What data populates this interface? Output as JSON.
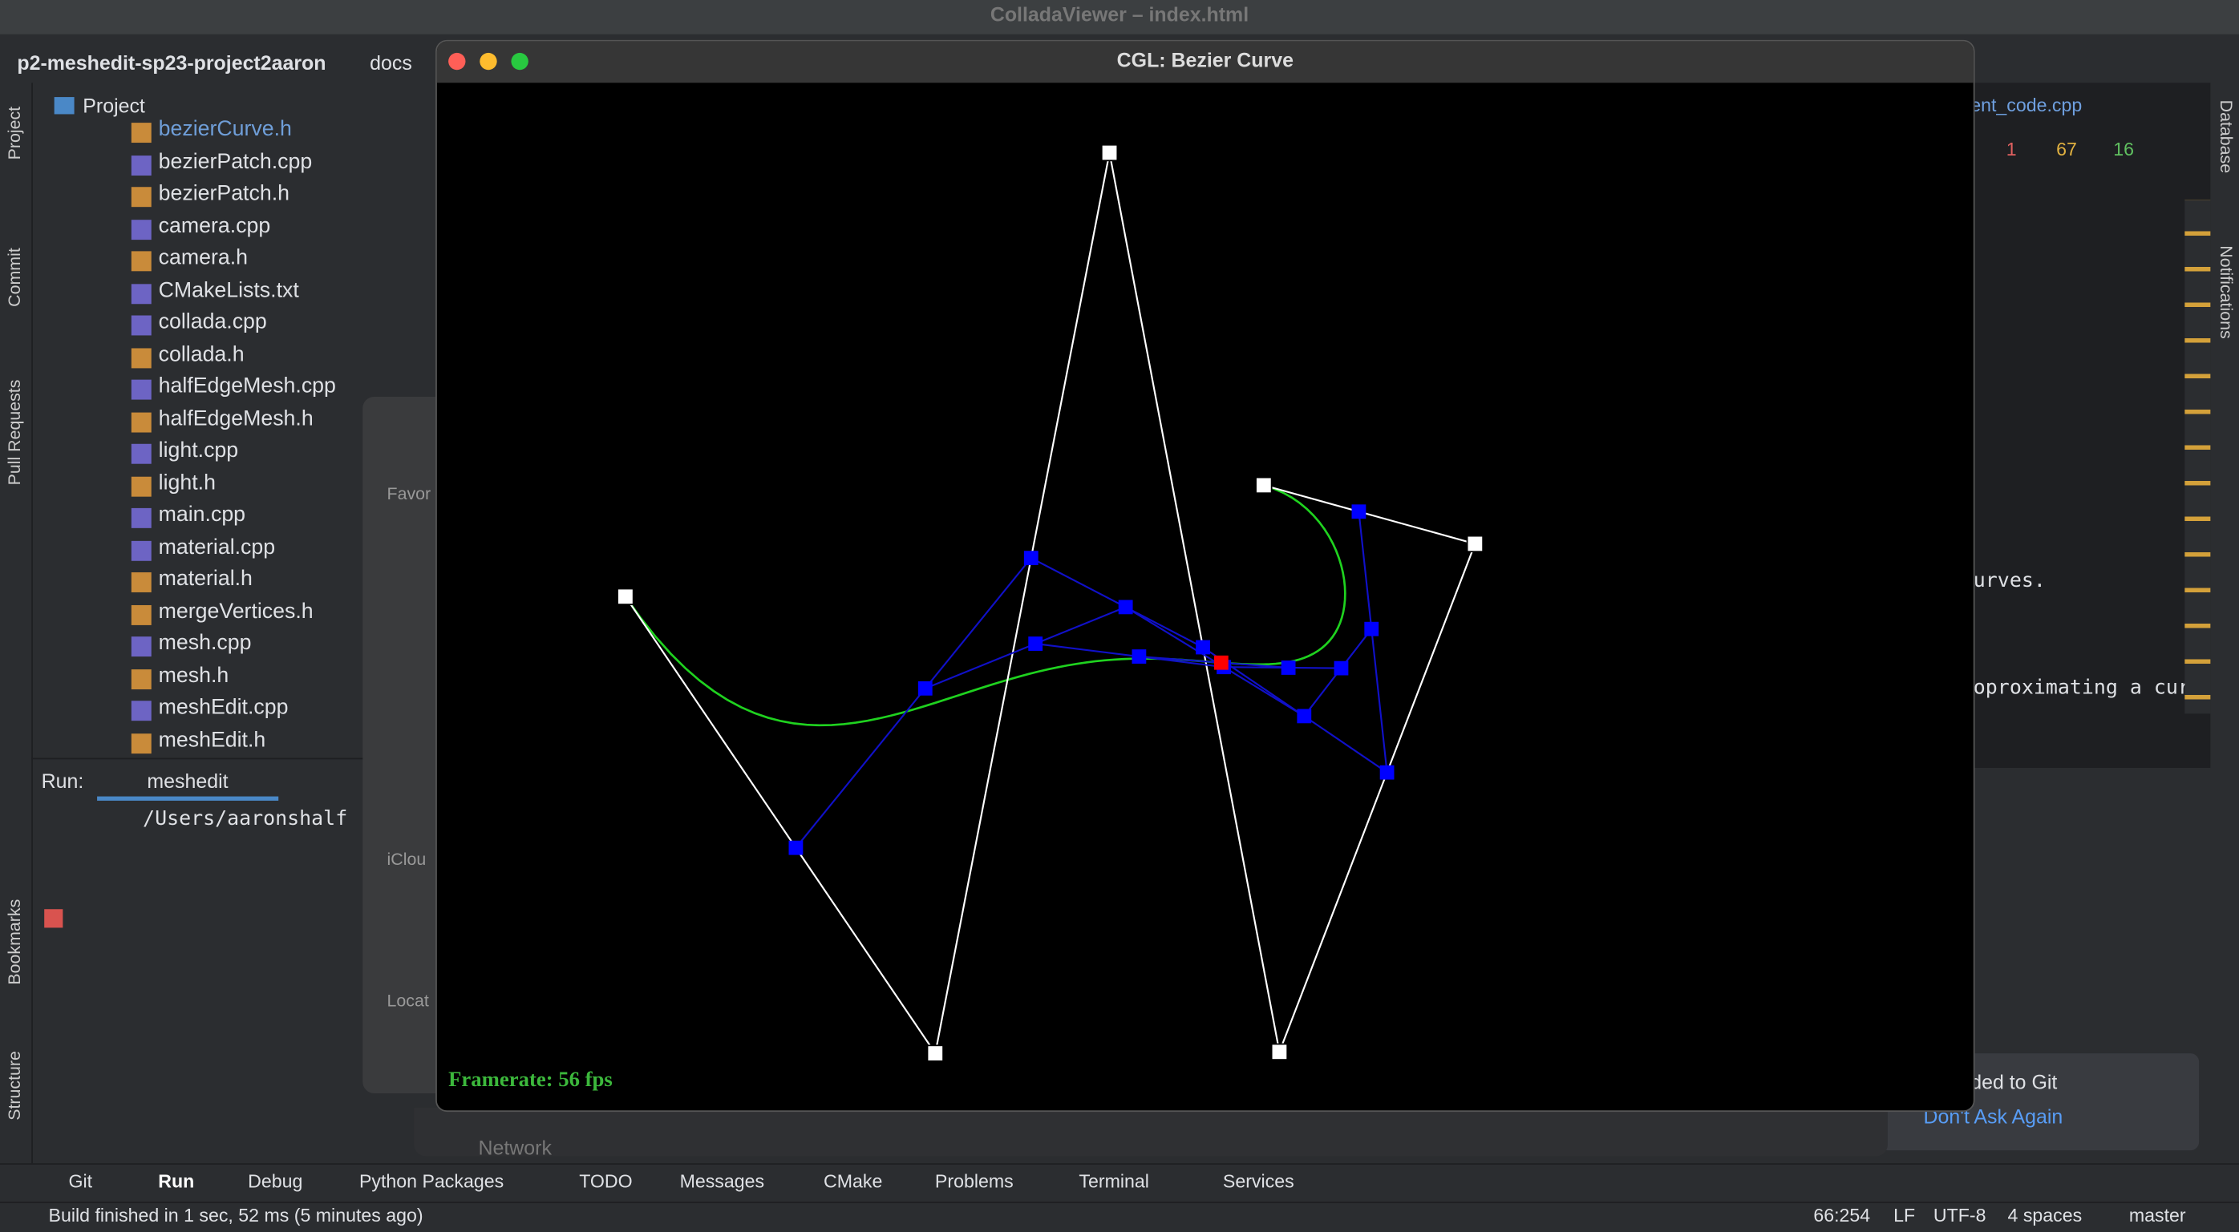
{
  "ide": {
    "window_title": "ColladaViewer – index.html",
    "breadcrumb": [
      "p2-meshedit-sp23-project2aaron",
      "docs"
    ],
    "project_label": "Project",
    "files": [
      "bezierCurve.h",
      "bezierPatch.cpp",
      "bezierPatch.h",
      "camera.cpp",
      "camera.h",
      "CMakeLists.txt",
      "collada.cpp",
      "collada.h",
      "halfEdgeMesh.cpp",
      "halfEdgeMesh.h",
      "light.cpp",
      "light.h",
      "main.cpp",
      "material.cpp",
      "material.h",
      "mergeVertices.h",
      "mesh.cpp",
      "mesh.h",
      "meshEdit.cpp",
      "meshEdit.h"
    ],
    "side_tabs_left": [
      "Project",
      "Commit",
      "Pull Requests",
      "Bookmarks",
      "Structure"
    ],
    "side_tabs_right": [
      "Database",
      "Notifications"
    ],
    "editor_tab": "ent_code.cpp",
    "inspections": {
      "errors": "1",
      "warnings": "67",
      "ok": "16"
    },
    "editor_lines": [
      "urves.",
      "oproximating a curv"
    ],
    "run_label": "Run:",
    "run_tab": "meshedit",
    "run_output": "/Users/aaronshalf",
    "tool_tabs": [
      "Git",
      "Run",
      "Debug",
      "Python Packages",
      "TODO",
      "Messages",
      "CMake",
      "Problems",
      "Terminal",
      "Services"
    ],
    "status": "Build finished in 1 sec, 52 ms (5 minutes ago)",
    "status_right": [
      "66:254",
      "LF",
      "UTF-8",
      "4 spaces",
      "master"
    ],
    "notification": {
      "text": "ded to Git",
      "action": "Don't Ask Again"
    }
  },
  "finder": {
    "sections": [
      "Favor",
      "iClou",
      "Locat"
    ],
    "network": "Network"
  },
  "viewer": {
    "title": "CGL: Bezier Curve",
    "framerate": "Framerate: 56 fps"
  }
}
